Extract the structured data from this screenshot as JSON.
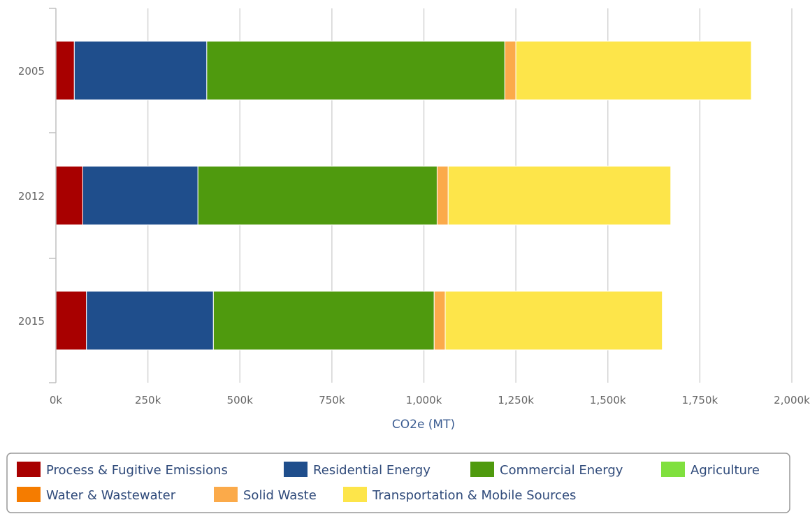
{
  "chart_data": {
    "type": "bar",
    "orientation": "horizontal",
    "stacked": true,
    "categories": [
      "2005",
      "2012",
      "2015"
    ],
    "xlabel": "CO2e (MT)",
    "xlim": [
      0,
      2000000
    ],
    "xticks": [
      0,
      250000,
      500000,
      750000,
      1000000,
      1250000,
      1500000,
      1750000,
      2000000
    ],
    "xtick_labels": [
      "0k",
      "250k",
      "500k",
      "750k",
      "1,000k",
      "1,250k",
      "1,500k",
      "1,750k",
      "2,000k"
    ],
    "grid": true,
    "legend_position": "bottom",
    "series": [
      {
        "name": "Process & Fugitive Emissions",
        "color": "#a80000",
        "values": [
          50000,
          73000,
          83000
        ]
      },
      {
        "name": "Residential Energy",
        "color": "#1f4e8c",
        "values": [
          360000,
          313000,
          345000
        ]
      },
      {
        "name": "Commercial Energy",
        "color": "#4f9a0e",
        "values": [
          810000,
          650000,
          600000
        ]
      },
      {
        "name": "Agriculture",
        "color": "#80e03e",
        "values": [
          0,
          0,
          0
        ]
      },
      {
        "name": "Water & Wastewater",
        "color": "#f57c00",
        "values": [
          0,
          0,
          0
        ]
      },
      {
        "name": "Solid Waste",
        "color": "#fbaa4a",
        "values": [
          30000,
          30000,
          30000
        ]
      },
      {
        "name": "Transportation & Mobile Sources",
        "color": "#fde54a",
        "values": [
          640000,
          605000,
          590000
        ]
      }
    ]
  }
}
